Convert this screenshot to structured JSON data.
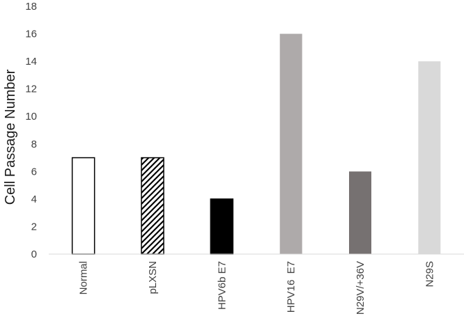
{
  "chart_data": {
    "type": "bar",
    "title": "",
    "xlabel": "",
    "ylabel": "Cell Passage Number",
    "ylim": [
      0,
      18
    ],
    "yticks": [
      0,
      2,
      4,
      6,
      8,
      10,
      12,
      14,
      16,
      18
    ],
    "grid": false,
    "legend": "none",
    "categories": [
      "Normal",
      "pLXSN",
      "HPV6b E7",
      "HPV16  E7",
      "N29V/+36V",
      "N29S"
    ],
    "values": [
      7,
      7,
      4,
      16,
      6,
      14
    ],
    "bar_styles": [
      {
        "fill": "#ffffff",
        "stroke": "#000000",
        "pattern": "none"
      },
      {
        "fill": "#ffffff",
        "stroke": "#000000",
        "pattern": "diagonal-hatch"
      },
      {
        "fill": "#000000",
        "stroke": "#000000",
        "pattern": "none"
      },
      {
        "fill": "#aeaaaa",
        "stroke": "none",
        "pattern": "none"
      },
      {
        "fill": "#767171",
        "stroke": "none",
        "pattern": "none"
      },
      {
        "fill": "#d9d9d9",
        "stroke": "none",
        "pattern": "none"
      }
    ],
    "axis_color": "#d9d9d9"
  }
}
